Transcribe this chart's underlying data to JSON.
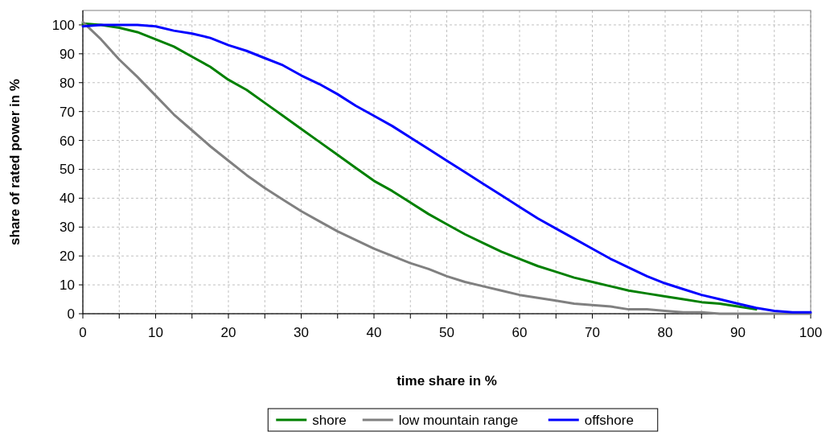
{
  "chart_data": {
    "type": "line",
    "xlabel": "time share in %",
    "ylabel": "share of rated power in %",
    "x": [
      0,
      2.5,
      5,
      7.5,
      10,
      12.5,
      15,
      17.5,
      20,
      22.5,
      25,
      27.5,
      30,
      32.5,
      35,
      37.5,
      40,
      42.5,
      45,
      47.5,
      50,
      52.5,
      55,
      57.5,
      60,
      62.5,
      65,
      67.5,
      70,
      72.5,
      75,
      77.5,
      80,
      82.5,
      85,
      87.5,
      90,
      92.5,
      95,
      97.5,
      100
    ],
    "series": [
      {
        "name": "shore",
        "color": "#008000",
        "values": [
          100.5,
          100,
          99,
          97.5,
          95,
          92.5,
          89,
          85.5,
          81,
          77.5,
          73,
          68.5,
          64,
          59.5,
          55,
          50.5,
          46,
          42.5,
          38.5,
          34.5,
          31,
          27.5,
          24.5,
          21.5,
          19,
          16.5,
          14.5,
          12.5,
          11,
          9.5,
          8,
          7,
          6,
          5,
          4,
          3.5,
          2.5,
          1.5,
          null,
          null,
          null
        ]
      },
      {
        "name": "low mountain range",
        "color": "#808080",
        "values": [
          101,
          95,
          88,
          82,
          75.5,
          69,
          63.5,
          58,
          53,
          48,
          43.5,
          39.5,
          35.5,
          32,
          28.5,
          25.5,
          22.5,
          20,
          17.5,
          15.5,
          13,
          11,
          9.5,
          8,
          6.5,
          5.5,
          4.5,
          3.5,
          3,
          2.5,
          1.5,
          1.5,
          1,
          0.5,
          0.5,
          0,
          0,
          0,
          0,
          0,
          0
        ]
      },
      {
        "name": "offshore",
        "color": "#0000ff",
        "values": [
          99.5,
          100,
          100,
          100,
          99.5,
          98,
          97,
          95.5,
          93,
          91,
          88.5,
          86,
          82.5,
          79.5,
          76,
          72,
          68.5,
          65,
          61,
          57,
          53,
          49,
          45,
          41,
          37,
          33,
          29.5,
          26,
          22.5,
          19,
          16,
          13,
          10.5,
          8.5,
          6.5,
          5,
          3.5,
          2,
          1,
          0.5,
          0.5
        ]
      }
    ],
    "xlim": [
      0,
      100
    ],
    "xticks": [
      0,
      {
        "value": 5,
        "label": null
      },
      10,
      {
        "value": 15,
        "label": null
      },
      20,
      {
        "value": 25,
        "label": null
      },
      30,
      {
        "value": 35,
        "label": null
      },
      40,
      {
        "value": 45,
        "label": null
      },
      50,
      {
        "value": 55,
        "label": null
      },
      60,
      {
        "value": 65,
        "label": null
      },
      70,
      {
        "value": 75,
        "label": null
      },
      80,
      {
        "value": 85,
        "label": null
      },
      90,
      {
        "value": 95,
        "label": null
      },
      100
    ],
    "ylim": [
      0,
      105
    ],
    "yticks": [
      0,
      10,
      20,
      30,
      40,
      50,
      60,
      70,
      80,
      90,
      100
    ],
    "grid": true,
    "legend": "bottom",
    "marker": "none",
    "line_style": "solid"
  }
}
